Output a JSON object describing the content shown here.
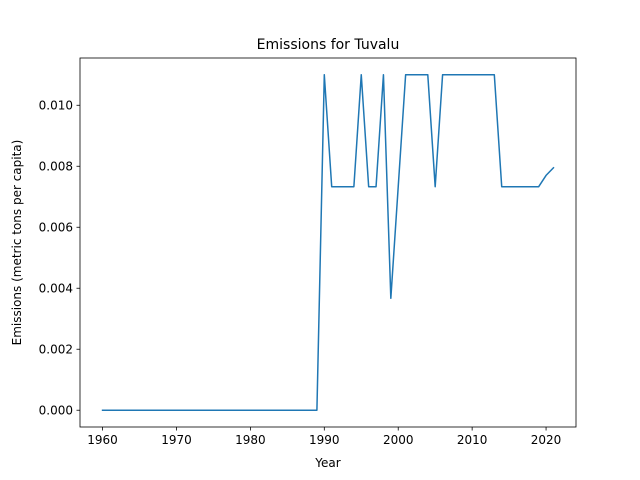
{
  "chart_data": {
    "type": "line",
    "title": "Emissions for Tuvalu",
    "xlabel": "Year",
    "ylabel": "Emissions (metric tons per capita)",
    "xlim": [
      1956.95,
      2024.05
    ],
    "ylim": [
      -0.00055,
      0.01155
    ],
    "xticks": [
      1960,
      1970,
      1980,
      1990,
      2000,
      2010,
      2020
    ],
    "xtick_labels": [
      "1960",
      "1970",
      "1980",
      "1990",
      "2000",
      "2010",
      "2020"
    ],
    "yticks": [
      0,
      0.002,
      0.004,
      0.006,
      0.008,
      0.01
    ],
    "ytick_labels": [
      "0.000",
      "0.002",
      "0.004",
      "0.006",
      "0.008",
      "0.010"
    ],
    "grid": false,
    "color": "#1f77b4",
    "series": [
      {
        "x": [
          1960,
          1961,
          1962,
          1963,
          1964,
          1965,
          1966,
          1967,
          1968,
          1969,
          1970,
          1971,
          1972,
          1973,
          1974,
          1975,
          1976,
          1977,
          1978,
          1979,
          1980,
          1981,
          1982,
          1983,
          1984,
          1985,
          1986,
          1987,
          1988,
          1989,
          1990,
          1991,
          1992,
          1993,
          1994,
          1995,
          1996,
          1997,
          1998,
          1999,
          2000,
          2001,
          2002,
          2003,
          2004,
          2005,
          2006,
          2007,
          2008,
          2009,
          2010,
          2011,
          2012,
          2013,
          2014,
          2015,
          2016,
          2017,
          2018,
          2019,
          2020,
          2021
        ],
        "y": [
          0,
          0,
          0,
          0,
          0,
          0,
          0,
          0,
          0,
          0,
          0,
          0,
          0,
          0,
          0,
          0,
          0,
          0,
          0,
          0,
          0,
          0,
          0,
          0,
          0,
          0,
          0,
          0,
          0,
          0,
          0.011,
          0.00733,
          0.00733,
          0.00733,
          0.00733,
          0.011,
          0.00733,
          0.00733,
          0.011,
          0.00367,
          0.00733,
          0.011,
          0.011,
          0.011,
          0.011,
          0.00733,
          0.011,
          0.011,
          0.011,
          0.011,
          0.011,
          0.011,
          0.011,
          0.011,
          0.00733,
          0.00733,
          0.00733,
          0.00733,
          0.00733,
          0.00733,
          0.0077,
          0.00795
        ]
      }
    ]
  }
}
